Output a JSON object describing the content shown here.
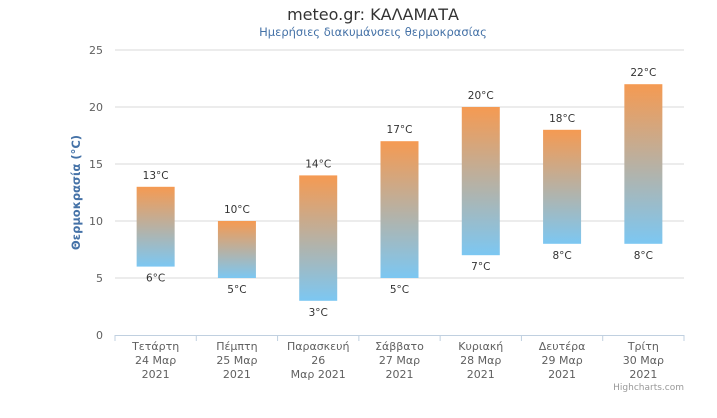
{
  "title": "meteo.gr: ΚΑΛΑΜΑΤΑ",
  "subtitle": "Ημερήσιες διακυμάνσεις θερμοκρασίας",
  "credits": "Highcharts.com",
  "colors": {
    "top": "#f59a52",
    "bottom": "#7cc7f2",
    "grid": "#d8d8d8",
    "axis": "#c0d0e0",
    "ylabel": "#4572a7"
  },
  "chart_data": {
    "type": "columnrange",
    "title": "meteo.gr: ΚΑΛΑΜΑΤΑ",
    "subtitle": "Ημερήσιες διακυμάνσεις θερμοκρασίας",
    "xlabel": "",
    "ylabel": "Θερμοκρασία (°C)",
    "ylim": [
      0,
      25
    ],
    "yticks": [
      0,
      5,
      10,
      15,
      20,
      25
    ],
    "grid": true,
    "legend": "none",
    "unit": "°C",
    "categories": [
      [
        "Τετάρτη",
        "24 Μαρ",
        "2021"
      ],
      [
        "Πέμπτη",
        "25 Μαρ",
        "2021"
      ],
      [
        "Παρασκευή",
        "26",
        "Μαρ 2021"
      ],
      [
        "Σάββατο",
        "27 Μαρ",
        "2021"
      ],
      [
        "Κυριακή",
        "28 Μαρ",
        "2021"
      ],
      [
        "Δευτέρα",
        "29 Μαρ",
        "2021"
      ],
      [
        "Τρίτη",
        "30 Μαρ",
        "2021"
      ]
    ],
    "low": [
      6,
      5,
      3,
      5,
      7,
      8,
      8
    ],
    "high": [
      13,
      10,
      14,
      17,
      20,
      18,
      22
    ]
  }
}
